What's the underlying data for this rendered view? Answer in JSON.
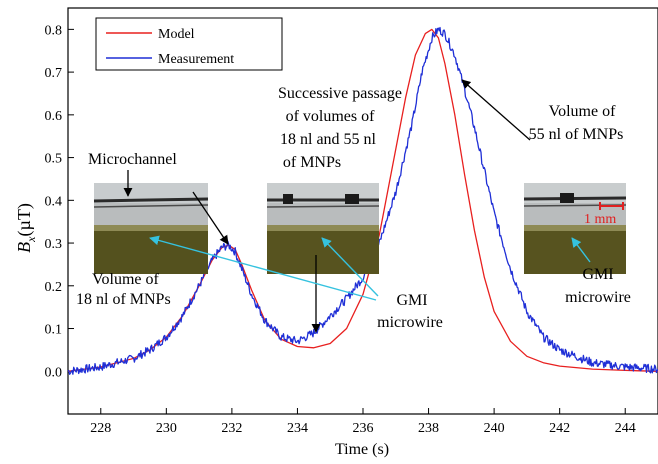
{
  "chart_data": {
    "type": "line",
    "xlabel": "Time (s)",
    "ylabel": "Bx(µT)",
    "ylabel_main": "B",
    "ylabel_sub": "x",
    "ylabel_unit": "(µT)",
    "xlim": [
      227,
      245
    ],
    "ylim": [
      -0.1,
      0.85
    ],
    "x_ticks": [
      228,
      230,
      232,
      234,
      236,
      238,
      240,
      242,
      244
    ],
    "y_ticks": [
      0.0,
      0.1,
      0.2,
      0.3,
      0.4,
      0.5,
      0.6,
      0.7,
      0.8
    ],
    "y_tick_labels": [
      "0.0",
      "0.1",
      "0.2",
      "0.3",
      "0.4",
      "0.5",
      "0.6",
      "0.7",
      "0.8"
    ],
    "grid": false,
    "legend_position": "top-left",
    "series": [
      {
        "name": "Model",
        "color": "#e8201f",
        "x": [
          227,
          228,
          229,
          229.5,
          230,
          230.5,
          231,
          231.4,
          231.7,
          231.9,
          232.1,
          232.3,
          232.6,
          233,
          233.5,
          234,
          234.5,
          235,
          235.5,
          236,
          236.5,
          237,
          237.3,
          237.6,
          237.9,
          238.1,
          238.3,
          238.5,
          238.8,
          239.1,
          239.4,
          239.7,
          240,
          240.5,
          241,
          241.5,
          242,
          243,
          244,
          245
        ],
        "y": [
          0.0,
          0.01,
          0.03,
          0.05,
          0.08,
          0.13,
          0.2,
          0.26,
          0.29,
          0.295,
          0.285,
          0.25,
          0.19,
          0.12,
          0.075,
          0.058,
          0.055,
          0.065,
          0.1,
          0.18,
          0.32,
          0.52,
          0.64,
          0.74,
          0.79,
          0.8,
          0.78,
          0.72,
          0.6,
          0.46,
          0.33,
          0.22,
          0.14,
          0.07,
          0.035,
          0.02,
          0.012,
          0.005,
          0.002,
          0.0
        ]
      },
      {
        "name": "Measurement",
        "color": "#1f2fd6",
        "x": [
          227,
          228,
          229,
          229.5,
          230,
          230.5,
          231,
          231.4,
          231.7,
          231.9,
          232.1,
          232.3,
          232.6,
          233,
          233.5,
          234,
          234.5,
          235,
          235.5,
          236,
          236.5,
          237,
          237.5,
          237.8,
          238.1,
          238.3,
          238.5,
          238.8,
          239.1,
          239.4,
          239.7,
          240,
          240.5,
          241,
          241.5,
          242,
          243,
          244,
          245
        ],
        "y": [
          0.0,
          0.01,
          0.03,
          0.05,
          0.08,
          0.13,
          0.2,
          0.26,
          0.29,
          0.295,
          0.28,
          0.24,
          0.18,
          0.12,
          0.08,
          0.07,
          0.09,
          0.13,
          0.17,
          0.22,
          0.3,
          0.42,
          0.58,
          0.7,
          0.78,
          0.8,
          0.79,
          0.74,
          0.66,
          0.57,
          0.47,
          0.37,
          0.24,
          0.14,
          0.08,
          0.05,
          0.02,
          0.01,
          0.005
        ]
      }
    ],
    "annotations": [
      {
        "id": "microchannel",
        "text": [
          "Microchannel"
        ]
      },
      {
        "id": "volume18",
        "text": [
          "Volume of",
          "18 nl of MNPs"
        ]
      },
      {
        "id": "passage",
        "text": [
          "Successive passage",
          "of volumes of",
          "18 nl and 55 nl",
          "of MNPs"
        ]
      },
      {
        "id": "volume55",
        "text": [
          "Volume of",
          "55 nl of MNPs"
        ]
      },
      {
        "id": "gmi-center",
        "text": [
          "GMI",
          "microwire"
        ]
      },
      {
        "id": "gmi-right",
        "text": [
          "GMI",
          "microwire"
        ]
      },
      {
        "id": "scale",
        "text": [
          "1 mm"
        ]
      }
    ]
  }
}
